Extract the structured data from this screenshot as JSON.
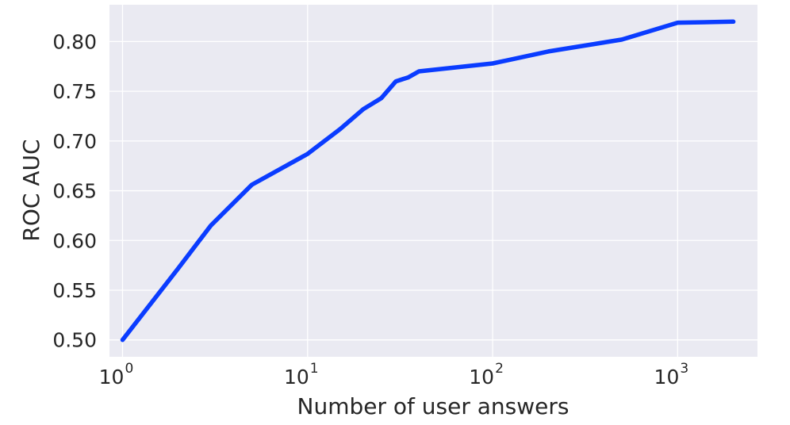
{
  "chart_data": {
    "type": "line",
    "title": "",
    "xlabel": "Number of user answers",
    "ylabel": "ROC AUC",
    "xscale": "log",
    "xlim": [
      0.85,
      2700
    ],
    "ylim": [
      0.483,
      0.837
    ],
    "grid": true,
    "legend": "none",
    "x_ticks": [
      {
        "value": 1,
        "base": "10",
        "exp": "0"
      },
      {
        "value": 10,
        "base": "10",
        "exp": "1"
      },
      {
        "value": 100,
        "base": "10",
        "exp": "2"
      },
      {
        "value": 1000,
        "base": "10",
        "exp": "3"
      }
    ],
    "y_ticks": [
      {
        "value": 0.5,
        "label": "0.50"
      },
      {
        "value": 0.55,
        "label": "0.55"
      },
      {
        "value": 0.6,
        "label": "0.60"
      },
      {
        "value": 0.65,
        "label": "0.65"
      },
      {
        "value": 0.7,
        "label": "0.70"
      },
      {
        "value": 0.75,
        "label": "0.75"
      },
      {
        "value": 0.8,
        "label": "0.80"
      }
    ],
    "series": [
      {
        "color": "#0a3cff",
        "x": [
          1,
          2,
          3,
          5,
          10,
          15,
          20,
          25,
          30,
          35,
          40,
          100,
          200,
          500,
          1000,
          2000
        ],
        "y": [
          0.5,
          0.572,
          0.615,
          0.656,
          0.687,
          0.712,
          0.732,
          0.743,
          0.76,
          0.764,
          0.77,
          0.778,
          0.79,
          0.802,
          0.819,
          0.82
        ]
      }
    ]
  },
  "colors": {
    "plot_background": "#eaeaf2",
    "grid": "#ffffff",
    "text": "#262626"
  }
}
